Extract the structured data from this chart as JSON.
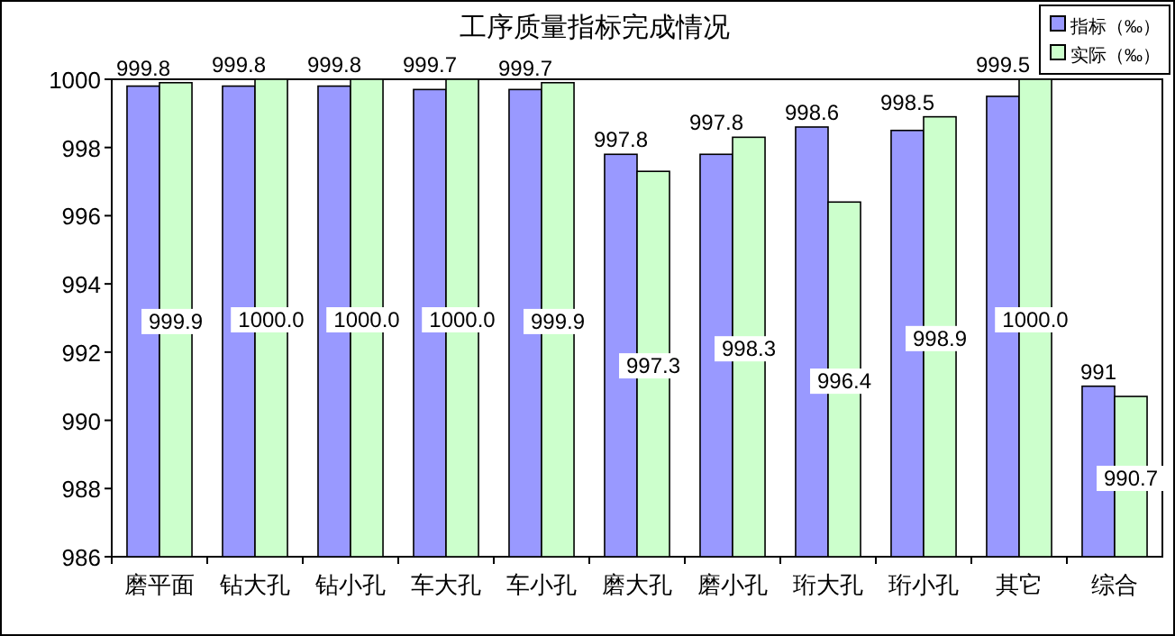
{
  "chart_data": {
    "type": "bar",
    "title": "工序质量指标完成情况",
    "categories": [
      "磨平面",
      "钻大孔",
      "钻小孔",
      "车大孔",
      "车小孔",
      "磨大孔",
      "磨小孔",
      "珩大孔",
      "珩小孔",
      "其它",
      "综合"
    ],
    "series": [
      {
        "name": "指标（‰）",
        "color": "#9999ff",
        "values": [
          999.8,
          999.8,
          999.8,
          999.7,
          999.7,
          997.8,
          997.8,
          998.6,
          998.5,
          999.5,
          991
        ],
        "value_labels": [
          "999.8",
          "999.8",
          "999.8",
          "999.7",
          "999.7",
          "997.8",
          "997.8",
          "998.6",
          "998.5",
          "999.5",
          "991"
        ]
      },
      {
        "name": "实际（‰）",
        "color": "#ccffcc",
        "values": [
          999.9,
          1000.0,
          1000.0,
          1000.0,
          999.9,
          997.3,
          998.3,
          996.4,
          998.9,
          1000.0,
          990.7
        ],
        "value_labels": [
          "999.9",
          "1000.0",
          "1000.0",
          "1000.0",
          "999.9",
          "997.3",
          "998.3",
          "996.4",
          "998.9",
          "1000.0",
          "990.7"
        ]
      }
    ],
    "ylim": [
      986,
      1000
    ],
    "yticks": [
      986,
      988,
      990,
      992,
      994,
      996,
      998,
      1000
    ],
    "grid": false,
    "legend": "top right"
  }
}
